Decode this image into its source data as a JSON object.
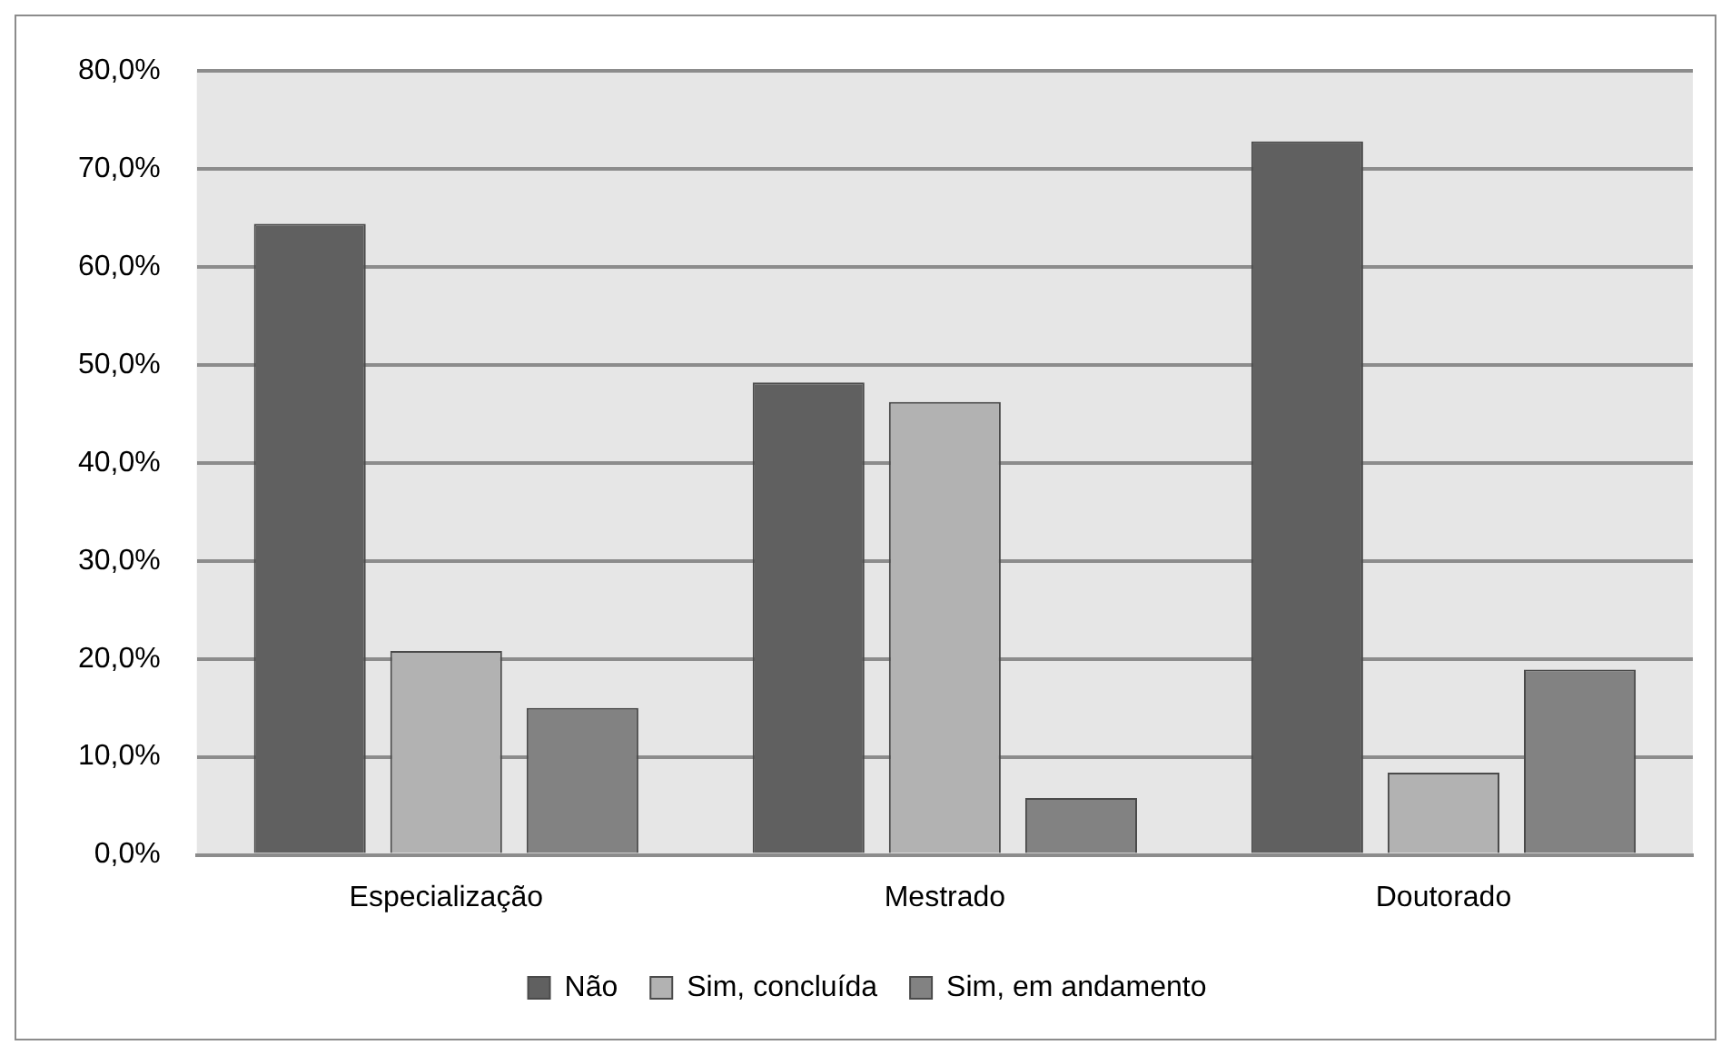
{
  "chart_data": {
    "type": "bar",
    "categories": [
      "Especialização",
      "Mestrado",
      "Doutorado"
    ],
    "series": [
      {
        "name": "Não",
        "color": "#606060",
        "values": [
          64.4,
          48.2,
          72.8
        ]
      },
      {
        "name": "Sim, concluída",
        "color": "#b2b2b2",
        "values": [
          20.8,
          46.2,
          8.4
        ]
      },
      {
        "name": "Sim, em andamento",
        "color": "#828282",
        "values": [
          15.0,
          5.8,
          18.9
        ]
      }
    ],
    "ylim": [
      0,
      80
    ],
    "yticks": [
      {
        "value": 0,
        "label": "0,0%"
      },
      {
        "value": 10,
        "label": "10,0%"
      },
      {
        "value": 20,
        "label": "20,0%"
      },
      {
        "value": 30,
        "label": "30,0%"
      },
      {
        "value": 40,
        "label": "40,0%"
      },
      {
        "value": 50,
        "label": "50,0%"
      },
      {
        "value": 60,
        "label": "60,0%"
      },
      {
        "value": 70,
        "label": "70,0%"
      },
      {
        "value": 80,
        "label": "80,0%"
      }
    ],
    "grid": "y",
    "legend": "bottom"
  }
}
